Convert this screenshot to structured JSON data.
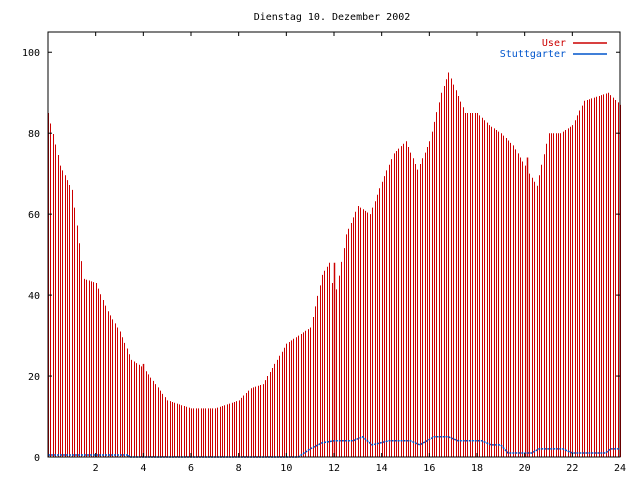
{
  "chart_data": {
    "type": "bar",
    "title": "Dienstag 10. Dezember 2002",
    "xlabel": "",
    "ylabel": "",
    "xlim": [
      0,
      24
    ],
    "ylim": [
      0,
      105
    ],
    "x_ticks": [
      "2",
      "4",
      "6",
      "8",
      "10",
      "12",
      "14",
      "16",
      "18",
      "20",
      "22",
      "24"
    ],
    "x_tick_values": [
      2,
      4,
      6,
      8,
      10,
      12,
      14,
      16,
      18,
      20,
      22,
      24
    ],
    "y_ticks": [
      "0",
      "20",
      "40",
      "60",
      "80",
      "100"
    ],
    "y_tick_values": [
      0,
      20,
      40,
      60,
      80,
      100
    ],
    "grid": false,
    "legend_position": "top-right",
    "legend": [
      {
        "name": "User",
        "color": "#cc0000"
      },
      {
        "name": "Stuttgarter",
        "color": "#0055cc"
      }
    ],
    "x_step": 0.1,
    "series": [
      {
        "name": "User",
        "kind": "bars",
        "color": "#cc0000",
        "points": [
          [
            0.0,
            85
          ],
          [
            0.5,
            72
          ],
          [
            1.0,
            66
          ],
          [
            1.5,
            44
          ],
          [
            2.0,
            43
          ],
          [
            2.5,
            36
          ],
          [
            3.0,
            31
          ],
          [
            3.5,
            24
          ],
          [
            4.0,
            22
          ],
          [
            4.5,
            18
          ],
          [
            5.0,
            14
          ],
          [
            5.5,
            13
          ],
          [
            6.0,
            12
          ],
          [
            6.5,
            12
          ],
          [
            7.0,
            12
          ],
          [
            7.5,
            13
          ],
          [
            8.0,
            14
          ],
          [
            8.5,
            17
          ],
          [
            9.0,
            18
          ],
          [
            9.5,
            23
          ],
          [
            10.0,
            28
          ],
          [
            10.5,
            30
          ],
          [
            11.0,
            32
          ],
          [
            11.5,
            45
          ],
          [
            11.8,
            48
          ],
          [
            12.0,
            38
          ],
          [
            12.5,
            55
          ],
          [
            13.0,
            62
          ],
          [
            13.5,
            60
          ],
          [
            14.0,
            68
          ],
          [
            14.5,
            75
          ],
          [
            15.0,
            78
          ],
          [
            15.5,
            71
          ],
          [
            16.0,
            78
          ],
          [
            16.5,
            90
          ],
          [
            16.8,
            95
          ],
          [
            17.0,
            92
          ],
          [
            17.5,
            85
          ],
          [
            18.0,
            85
          ],
          [
            18.5,
            82
          ],
          [
            19.0,
            80
          ],
          [
            19.5,
            77
          ],
          [
            20.0,
            72
          ],
          [
            20.5,
            67
          ],
          [
            21.0,
            80
          ],
          [
            21.5,
            80
          ],
          [
            22.0,
            82
          ],
          [
            22.5,
            88
          ],
          [
            23.0,
            89
          ],
          [
            23.5,
            90
          ],
          [
            24.0,
            87
          ]
        ],
        "spikes": [
          [
            4.0,
            23
          ],
          [
            12.0,
            48
          ],
          [
            20.1,
            74
          ]
        ]
      },
      {
        "name": "Stuttgarter",
        "kind": "line",
        "color": "#0055cc",
        "points": [
          [
            0.0,
            0.5
          ],
          [
            3.4,
            0.5
          ],
          [
            3.4,
            0
          ],
          [
            10.5,
            0
          ],
          [
            11.0,
            2
          ],
          [
            11.5,
            3.5
          ],
          [
            12.0,
            4
          ],
          [
            12.8,
            4
          ],
          [
            13.2,
            5
          ],
          [
            13.6,
            3
          ],
          [
            14.3,
            4
          ],
          [
            15.2,
            4
          ],
          [
            15.6,
            3
          ],
          [
            16.2,
            5
          ],
          [
            16.8,
            5
          ],
          [
            17.2,
            4
          ],
          [
            18.2,
            4
          ],
          [
            18.6,
            3
          ],
          [
            19.0,
            3
          ],
          [
            19.3,
            1
          ],
          [
            20.3,
            1
          ],
          [
            20.6,
            2
          ],
          [
            21.6,
            2
          ],
          [
            22.0,
            1
          ],
          [
            23.4,
            1
          ],
          [
            23.6,
            2
          ],
          [
            24.0,
            2
          ]
        ]
      }
    ]
  }
}
